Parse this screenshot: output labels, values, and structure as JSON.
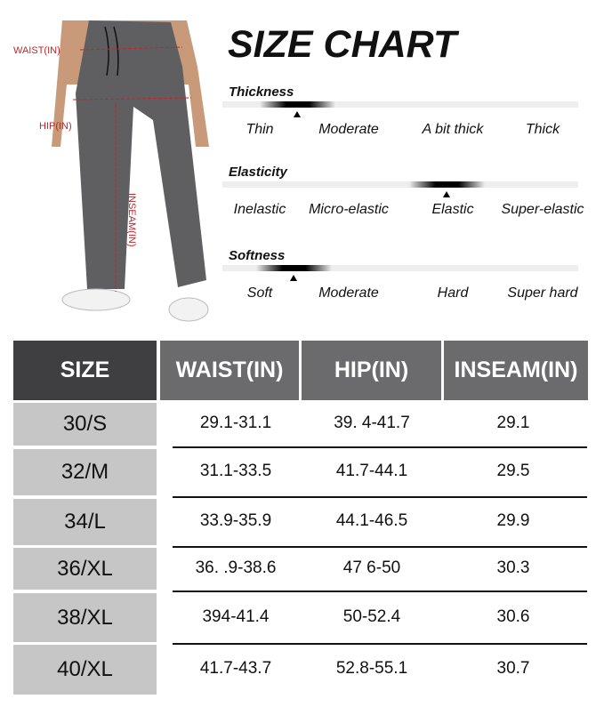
{
  "figure": {
    "labels": {
      "waist": "WAIST(IN)",
      "hip": "HIP(IN)",
      "inseam": "INSEAM(IN)"
    },
    "pants_color": "#5f5f61",
    "measure_color": "#c0262b"
  },
  "title": "SIZE CHART",
  "scales": [
    {
      "label": "Thickness",
      "options": [
        "Thin",
        "Moderate",
        "A bit thick",
        "Thick"
      ],
      "level": 0.21
    },
    {
      "label": "Elasticity",
      "options": [
        "Inelastic",
        "Micro-elastic",
        "Elastic",
        "Super-elastic"
      ],
      "level": 0.63
    },
    {
      "label": "Softness",
      "options": [
        "Soft",
        "Moderate",
        "Hard",
        "Super hard"
      ],
      "level": 0.2
    }
  ],
  "table": {
    "headers": [
      "SIZE",
      "WAIST(IN)",
      "HIP(IN)",
      "INSEAM(IN)"
    ],
    "rows": [
      [
        "30/S",
        "29.1-31.1",
        "39. 4-41.7",
        "29.1"
      ],
      [
        "32/M",
        "31.1-33.5",
        "41.7-44.1",
        "29.5"
      ],
      [
        "34/L",
        "33.9-35.9",
        "44.1-46.5",
        "29.9"
      ],
      [
        "36/XL",
        "36. .9-38.6",
        "47 6-50",
        "30.3"
      ],
      [
        "38/XL",
        "394-41.4",
        "50-52.4",
        "30.6"
      ],
      [
        "40/XL",
        "41.7-43.7",
        "52.8-55.1",
        "30.7"
      ]
    ],
    "colors": {
      "size_header": "#3f3f42",
      "header": "#6b6b6d",
      "size_cell": "#c6c6c6"
    }
  }
}
